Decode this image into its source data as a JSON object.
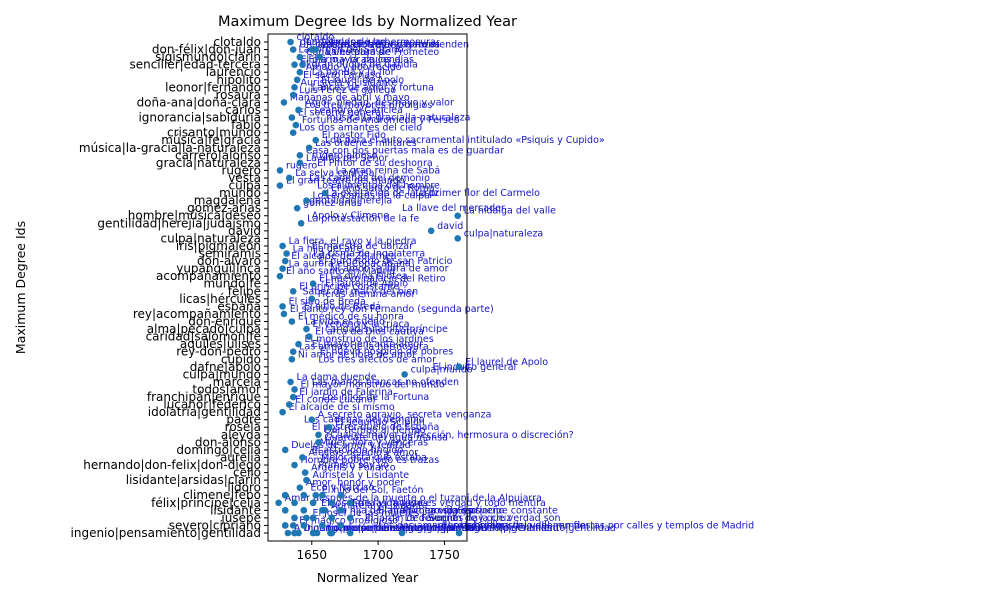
{
  "chart_data": {
    "type": "scatter",
    "title": "Maximum Degree Ids by Normalized Year",
    "xlabel": "Normalized Year",
    "ylabel": "Maximum Degree Ids",
    "xlim": [
      1617,
      1767
    ],
    "x_ticks": [
      1650,
      1700,
      1750
    ],
    "grid": false,
    "colors": {
      "point": "#1f77b4",
      "annotation": "#1414c8",
      "axis": "#000000"
    },
    "y_tick_labels": [
      "clotaldo",
      "don-félix|don-juan",
      "sigismundo|clarín",
      "senciller|edad-tercera",
      "laurencio",
      "hipólito",
      "leonor|fernando",
      "rosaura",
      "doña-ana|doña-clara",
      "carlos",
      "ignorancia|sabiduría",
      "fabio",
      "crisanto|mundo",
      "música|fe|gracia",
      "música|la-gracia|la-naturaleza",
      "carrero|alonso",
      "gracia|naturaleza",
      "rugero",
      "vesta",
      "culpa",
      "mundo",
      "magdalena",
      "gomez-arias",
      "hombre|música|deseo",
      "gentilidad|herejía|judaísmo",
      "david",
      "culpa|naturaleza",
      "iris|pigmaleón",
      "semiramis",
      "don-alvaro",
      "yupanguí|inca",
      "acompañamiento",
      "mundo|fe",
      "felipe",
      "licas|hércules",
      "españa",
      "rey|acompañamiento",
      "don-enrique",
      "alma|pecado|culpa",
      "caridad|salomón|fe",
      "aquiles|ulises",
      "rey-don-pedro",
      "cupido",
      "dafne|apolo",
      "culpa|mundo",
      "marcela",
      "todos|amor",
      "franchipán|enrique",
      "lucanor|federico",
      "idolatría|gentilidad",
      "padre",
      "rosela",
      "aleyda",
      "don-alonso",
      "domingo|celia",
      "aurelia",
      "hernando|don-felix|don-diego",
      "celio",
      "lisidante|arsidas|clarín",
      "lidoro",
      "climene|febo",
      "félix|príncipe|celia",
      "lisidante",
      "jusepe",
      "severo|cipriano",
      "ingenio|pensamiento|gentilidad"
    ],
    "series": [
      {
        "points": [
          {
            "x": 1634,
            "y": "clotaldo",
            "label": "clotaldo"
          },
          {
            "x": 1636,
            "y": "don-félix|don-juan",
            "label": "Un castigo en tres venganzas"
          },
          {
            "x": 1653,
            "y": "don-félix|don-juan",
            "label": "Las manos blancas no ofenden"
          },
          {
            "x": 1650,
            "y": "don-félix|don-juan",
            "label": "Lances de amor y fortuna"
          },
          {
            "x": 1641,
            "y": "sigismundo|clarín",
            "label": "Cada uno para sí"
          },
          {
            "x": 1656,
            "y": "sigismundo|clarín",
            "label": "La estatua de Prometeo"
          },
          {
            "x": 1637,
            "y": "senciller|edad-tercera",
            "label": "El día mayor de los días"
          },
          {
            "x": 1643,
            "y": "senciller|edad-tercera",
            "label": "El lirio y la azucena"
          },
          {
            "x": 1641,
            "y": "laurencio",
            "label": "Amado y aborrecido"
          },
          {
            "x": 1639,
            "y": "hipólito",
            "label": "El sacro Parnaso"
          },
          {
            "x": 1637,
            "y": "leonor|fernando",
            "label": "Auristela y Lisidante"
          },
          {
            "x": 1636,
            "y": "rosaura",
            "label": "Luis Pérez el gallego"
          },
          {
            "x": 1629,
            "y": "doña-ana|doña-clara",
            "label": "Mañanas de abril y mayo"
          },
          {
            "x": 1640,
            "y": "carlos",
            "label": "Los tres mayores prodigios"
          },
          {
            "x": 1635,
            "y": "ignorancia|sabiduría",
            "label": "El socorro general"
          },
          {
            "x": 1638,
            "y": "fabio",
            "label": "Fortunas de Andrómeda y Perseo"
          },
          {
            "x": 1636,
            "y": "crisanto|mundo",
            "label": "Los dos amantes del cielo"
          },
          {
            "x": 1653,
            "y": "música|fe|gracia",
            "label": "El pastor Fido"
          },
          {
            "x": 1648,
            "y": "música|la-gracia|la-naturaleza",
            "label": "Las órdenes militares"
          },
          {
            "x": 1641,
            "y": "carrero|alonso",
            "label": "Casa con dos puertas mala es de guardar"
          },
          {
            "x": 1641,
            "y": "gracia|naturaleza",
            "label": "La viña del Señor"
          },
          {
            "x": 1626,
            "y": "rugero",
            "label": "rugero"
          },
          {
            "x": 1633,
            "y": "vesta",
            "label": "La selva confusa"
          },
          {
            "x": 1626,
            "y": "culpa",
            "label": "El gran teatro del mundo"
          },
          {
            "x": 1660,
            "y": "mundo",
            "label": "El año santo de Roma"
          },
          {
            "x": 1646,
            "y": "magdalena",
            "label": "Los encantos de la culpa"
          },
          {
            "x": 1639,
            "y": "gomez-arias",
            "label": "gomez-arias"
          },
          {
            "x": 1760,
            "y": "hombre|música|deseo",
            "label": "La hidalga del valle"
          },
          {
            "x": 1642,
            "y": "gentilidad|herejía|judaísmo",
            "label": "La protestación de la fe"
          },
          {
            "x": 1740,
            "y": "david",
            "label": "david"
          },
          {
            "x": 1760,
            "y": "culpa|naturaleza",
            "label": "culpa|naturaleza"
          },
          {
            "x": 1628,
            "y": "iris|pigmaleón",
            "label": "La fiera, el rayo y la piedra"
          },
          {
            "x": 1631,
            "y": "semiramis",
            "label": "La hija del aire"
          },
          {
            "x": 1630,
            "y": "don-alvaro",
            "label": "El alcalde de Zalamea"
          },
          {
            "x": 1628,
            "y": "yupanguí|inca",
            "label": "La aurora en Copacabana"
          },
          {
            "x": 1626,
            "y": "acompañamiento",
            "label": "El año santo en Madrid"
          },
          {
            "x": 1651,
            "y": "mundo|fe",
            "label": "El nuevo palacio del Retiro"
          },
          {
            "x": 1636,
            "y": "felipe",
            "label": "El príncipe constante"
          },
          {
            "x": 1650,
            "y": "licas|hércules",
            "label": "Fieras afemina amor"
          },
          {
            "x": 1628,
            "y": "españa",
            "label": "El sitio de Bredá"
          },
          {
            "x": 1629,
            "y": "rey|acompañamiento",
            "label": "El santo rey don Fernando (segunda parte)"
          },
          {
            "x": 1635,
            "y": "don-enrique",
            "label": "El médico de su honra"
          },
          {
            "x": 1646,
            "y": "alma|pecado|culpa",
            "label": "El veneno y la triaca"
          },
          {
            "x": 1648,
            "y": "caridad|salomón|fe",
            "label": "El arca de Dios cautiva"
          },
          {
            "x": 1640,
            "y": "aquiles|ulises",
            "label": "El monstruo de los jardines"
          },
          {
            "x": 1636,
            "y": "rey-don-pedro",
            "label": "Las armas de la hermosura"
          },
          {
            "x": 1635,
            "y": "cupido",
            "label": "Ni amor se libra de amor"
          },
          {
            "x": 1761,
            "y": "dafne|apolo",
            "label": "El laurel de Apolo"
          },
          {
            "x": 1720,
            "y": "culpa|mundo",
            "label": "culpa|mundo"
          },
          {
            "x": 1634,
            "y": "marcela",
            "label": "La dama duende"
          },
          {
            "x": 1637,
            "y": "todos|amor",
            "label": "El mayor monstruo del mundo"
          },
          {
            "x": 1636,
            "y": "franchipán|enrique",
            "label": "El jardín de Falerina"
          },
          {
            "x": 1633,
            "y": "lucanor|federico",
            "label": "El conde Lucanor"
          },
          {
            "x": 1628,
            "y": "idolatría|gentilidad",
            "label": "El alcaide de sí mismo"
          },
          {
            "x": 1650,
            "y": "padre",
            "label": "A secreto agravio, secreta venganza"
          },
          {
            "x": 1663,
            "y": "rosela",
            "label": "El segundo Scipión"
          },
          {
            "x": 1655,
            "y": "aleyda",
            "label": "Dar tiempo al tiempo"
          },
          {
            "x": 1655,
            "y": "don-alonso",
            "label": "Guárdate del agua mansa"
          },
          {
            "x": 1630,
            "y": "domingo|celia",
            "label": "Duelos de amor y lealtad"
          },
          {
            "x": 1643,
            "y": "aurelia",
            "label": "Afectos de odio y amor"
          },
          {
            "x": 1637,
            "y": "hernando|don-felix|don-diego",
            "label": "Hombre pobre todo es trazas"
          },
          {
            "x": 1645,
            "y": "celio",
            "label": "Argenis y Poliarco"
          },
          {
            "x": 1646,
            "y": "lisidante|arsidas|clarín",
            "label": "Auristela y Lisidante"
          },
          {
            "x": 1641,
            "y": "lidoro",
            "label": "Amor, honor y poder"
          },
          {
            "x": 1653,
            "y": "climene|febo",
            "label": "El hijo del Sol, Faetón"
          },
          {
            "x": 1625,
            "y": "félix|príncipe|celia",
            "label": "Amar después de la muerte o el tuzaní de la Alpujarra"
          },
          {
            "x": 1660,
            "y": "lisidante",
            "label": "Auristela y Lisidante"
          },
          {
            "x": 1646,
            "y": "jusepe",
            "label": "El Josef de las mujeres"
          },
          {
            "x": 1636,
            "y": "severo|cipriano",
            "label": "El mágico prodigioso"
          },
          {
            "x": 1632,
            "y": "ingenio|pensamiento|gentilidad",
            "label": "A Dios por razón de estado"
          },
          {
            "x": 1640,
            "y": "ingenio|pensamiento|gentilidad",
            "label": "ingenio|pensamiento|gentilidad"
          },
          {
            "x": 1654,
            "y": "ingenio|pensamiento|gentilidad",
            "label": "ingenio|pensamiento|gentilidad"
          },
          {
            "x": 1664,
            "y": "ingenio|pensamiento|gentilidad",
            "label": "ingenio|pensamiento|gentilidad"
          },
          {
            "x": 1718,
            "y": "ingenio|pensamiento|gentilidad",
            "label": "ingenio|pensamiento|gentilidad"
          },
          {
            "x": 1761,
            "y": "ingenio|pensamiento|gentilidad",
            "label": "ingenio|pensamiento|gentilidad"
          }
        ]
      }
    ],
    "extra_annotations": [
      {
        "x": 1641,
        "y": "clotaldo",
        "text": "don-félix|don-juan"
      },
      {
        "x": 1646,
        "y": "clotaldo",
        "text": "Las armas de la hermosura"
      },
      {
        "x": 1640,
        "y": "don-félix|don-juan",
        "text": "La Virgen del Sagrario"
      },
      {
        "x": 1641,
        "y": "senciller|edad-tercera",
        "text": "El gran duque de Gandía"
      },
      {
        "x": 1650,
        "y": "laurencio",
        "text": "La banda y la flor"
      },
      {
        "x": 1657,
        "y": "hipólito",
        "text": "El laurel de Apolo"
      },
      {
        "x": 1650,
        "y": "leonor|fernando",
        "text": "Lances de amor y fortuna"
      },
      {
        "x": 1645,
        "y": "doña-ana|doña-clara",
        "text": "Amor, piedad, desmayo y valor"
      },
      {
        "x": 1652,
        "y": "carlos",
        "text": "Leandro y Cariclea"
      },
      {
        "x": 1661,
        "y": "ignorancia|sabiduría",
        "text": "música|la-gracia|la-naturaleza"
      },
      {
        "x": 1660,
        "y": "música|fe|gracia",
        "text": "Loa para el auto sacramental intitulado «Psiquis y Cupido»"
      },
      {
        "x": 1650,
        "y": "carrero|alonso",
        "text": "rugero|alonso"
      },
      {
        "x": 1654,
        "y": "gracia|naturaleza",
        "text": "El Pintor de su deshonra"
      },
      {
        "x": 1668,
        "y": "rugero",
        "text": "La gran reina de Sabá"
      },
      {
        "x": 1648,
        "y": "vesta",
        "text": "Las cadenas del demonio"
      },
      {
        "x": 1654,
        "y": "culpa",
        "text": "Los alimentos del hombre"
      },
      {
        "x": 1648,
        "y": "magdalena",
        "text": "gentilidad|herejía"
      },
      {
        "x": 1728,
        "y": "mundo",
        "text": "La primer flor del Carmelo"
      },
      {
        "x": 1718,
        "y": "gomez-arias",
        "text": "La llave del mercader"
      },
      {
        "x": 1650,
        "y": "hombre|música|deseo",
        "text": "Apolo y Climene"
      },
      {
        "x": 1650,
        "y": "iris|pigmaleón",
        "text": "El maestro de danzar"
      },
      {
        "x": 1651,
        "y": "semiramis",
        "text": "La cisma de Ingalaterra"
      },
      {
        "x": 1655,
        "y": "don-alvaro",
        "text": "El purgatorio de san Patricio"
      },
      {
        "x": 1664,
        "y": "yupanguí|inca",
        "text": "Ni amor se libra de amor"
      },
      {
        "x": 1664,
        "y": "acompañamiento",
        "text": "La divina Filotea"
      },
      {
        "x": 1660,
        "y": "mundo|fe",
        "text": "El laurel de Apolo"
      },
      {
        "x": 1661,
        "y": "mundo",
        "text": "La exaltación de la cruz"
      },
      {
        "x": 1643,
        "y": "felipe",
        "text": "Saber del mal y del bien"
      },
      {
        "x": 1644,
        "y": "españa",
        "text": "El sitio de Bredá"
      },
      {
        "x": 1645,
        "y": "don-enrique",
        "text": "La vida es sueño"
      },
      {
        "x": 1660,
        "y": "alma|pecado|culpa",
        "text": "caridad|sulamitis|príncipe"
      },
      {
        "x": 1656,
        "y": "rey-don-pedro",
        "text": "El nuevo hospicio de pobres"
      },
      {
        "x": 1650,
        "y": "aquiles|ulises",
        "text": "El mayor encanto amor"
      },
      {
        "x": 1655,
        "y": "cupido",
        "text": "Los tres afectos de amor"
      },
      {
        "x": 1741,
        "y": "dafne|apolo",
        "text": "El indulto general"
      },
      {
        "x": 1650,
        "y": "marcela",
        "text": "Las manos blancas no ofenden"
      },
      {
        "x": 1658,
        "y": "franchipán|enrique",
        "text": "Los hijos de la Fortuna"
      },
      {
        "x": 1644,
        "y": "padre",
        "text": "Las cadenas del demonio"
      },
      {
        "x": 1650,
        "y": "rosela",
        "text": "El postrer duelo de España"
      },
      {
        "x": 1660,
        "y": "aleyda",
        "text": "¿Cuál es mayor perfección, hermosura o discreción?"
      },
      {
        "x": 1656,
        "y": "don-alonso",
        "text": "Mujer, llora y vencerás"
      },
      {
        "x": 1650,
        "y": "domingo|celia",
        "text": "El astrólogo fingido"
      },
      {
        "x": 1657,
        "y": "aurelia",
        "text": "Mejor está que estaba"
      },
      {
        "x": 1655,
        "y": "hernando|don-felix|don-diego",
        "text": "Primero soy yo"
      },
      {
        "x": 1649,
        "y": "lidoro",
        "text": "Eco y Narciso"
      },
      {
        "x": 1657,
        "y": "félix|príncipe|celia",
        "text": "El Josef de las mujeres"
      },
      {
        "x": 1668,
        "y": "lisidante",
        "text": "La hija del aire"
      },
      {
        "x": 1690,
        "y": "jusepe",
        "text": "El jardín de Falerina"
      },
      {
        "x": 1700,
        "y": "severo|cipriano",
        "text": "Los dos amantes del cielo"
      },
      {
        "x": 1719,
        "y": "lisidante",
        "text": "Primero soy yo"
      },
      {
        "x": 1680,
        "y": "félix|príncipe|celia",
        "text": "En la vida todo es verdad y todo mentira"
      },
      {
        "x": 1700,
        "y": "lisidante",
        "text": "El mágico prodigioso"
      },
      {
        "x": 1720,
        "y": "jusepe",
        "text": "La devoción de la cruz"
      },
      {
        "x": 1735,
        "y": "lisidante",
        "text": "La vida es sueño"
      },
      {
        "x": 1748,
        "y": "severo|cipriano",
        "text": "El mayor monstruo del mundo"
      },
      {
        "x": 1760,
        "y": "lisidante",
        "text": "El príncipe constante"
      },
      {
        "x": 1738,
        "y": "jusepe",
        "text": "Sueños hay que verdad son"
      },
      {
        "x": 1762,
        "y": "severo|cipriano",
        "text": "La hidalga del valle, en fiestas por calles y templos de Madrid"
      }
    ]
  }
}
